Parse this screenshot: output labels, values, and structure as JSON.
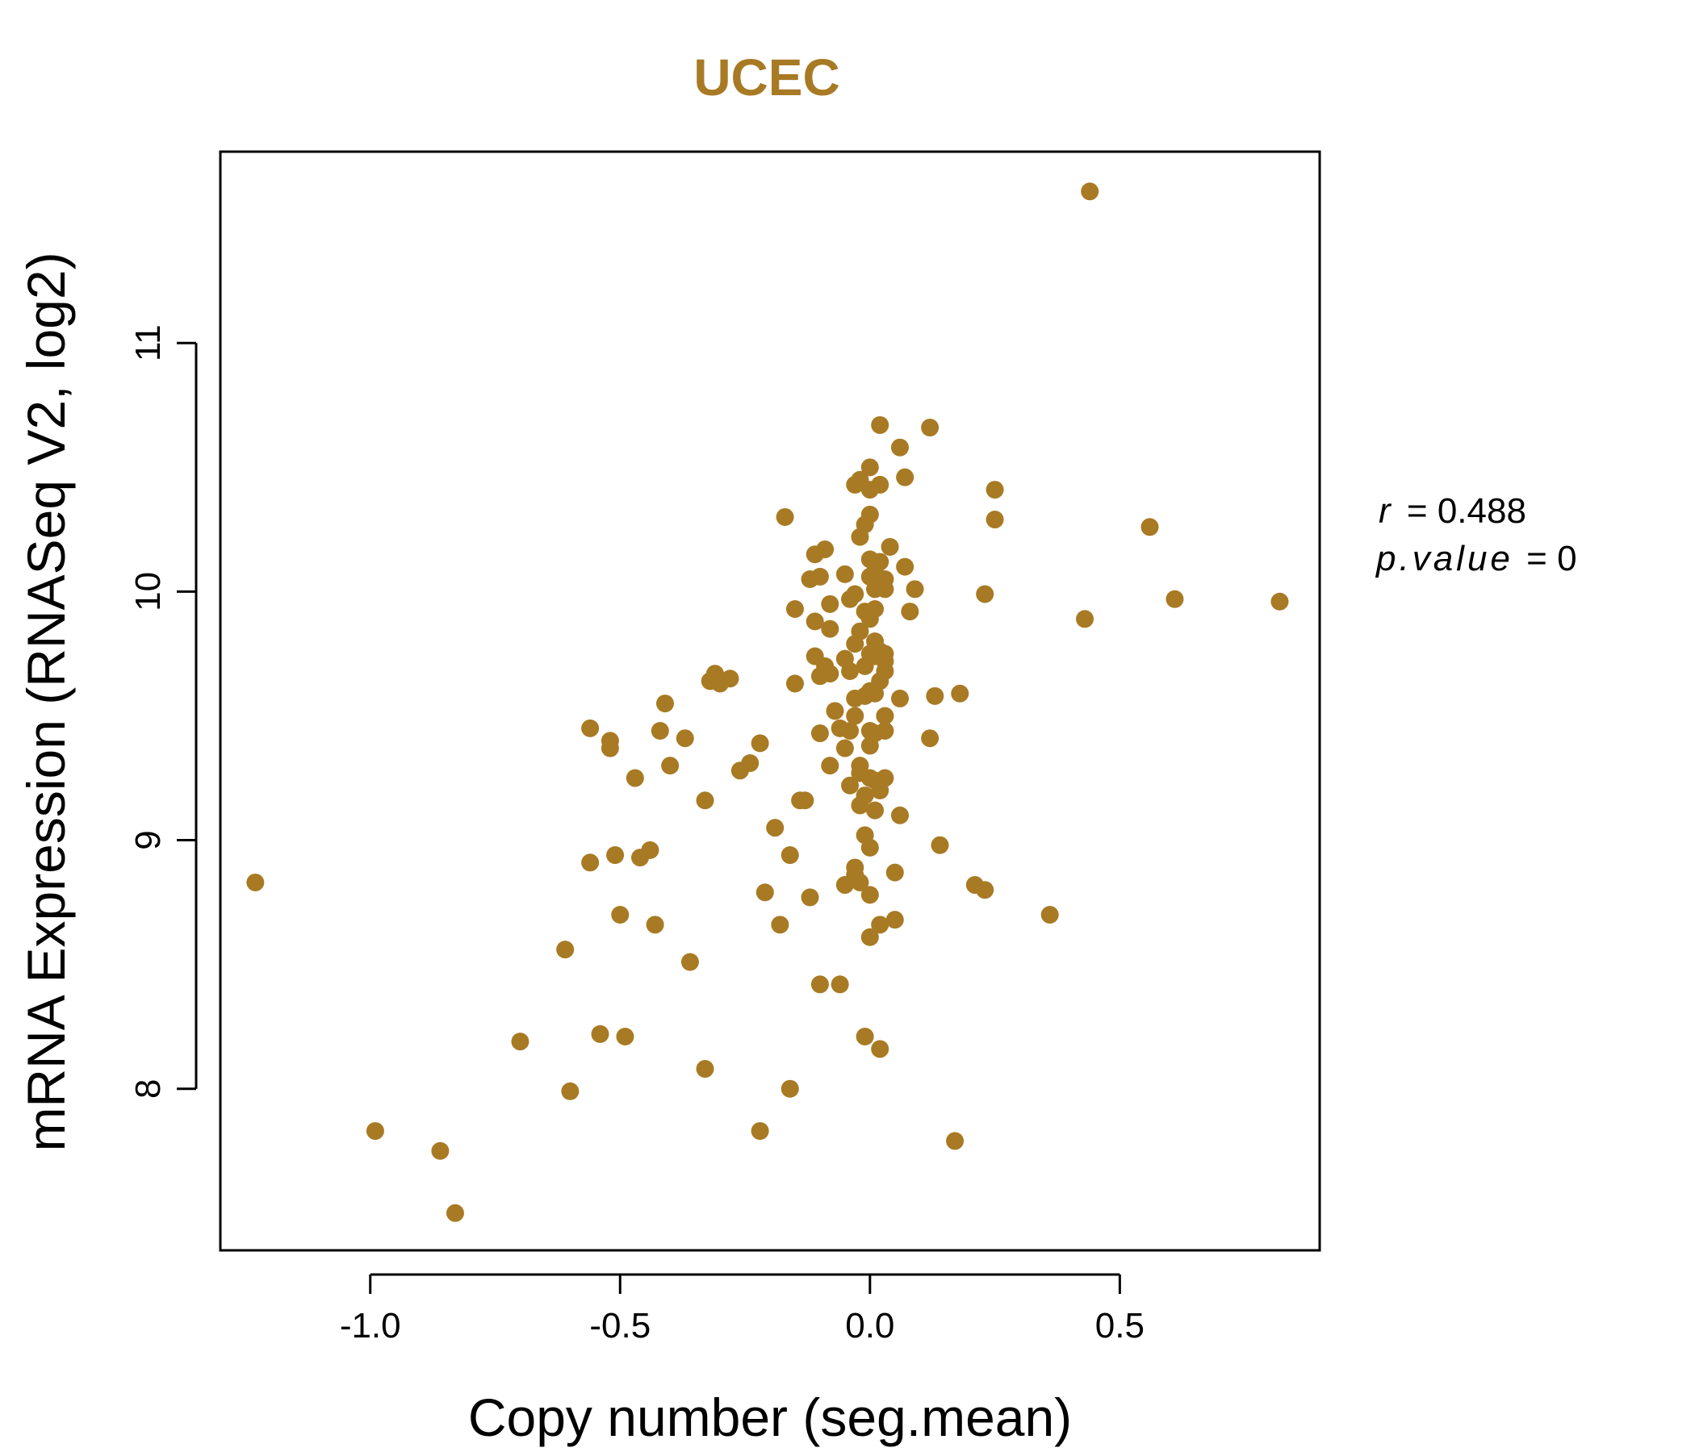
{
  "chart_data": {
    "type": "scatter",
    "title": "UCEC",
    "xlabel": "Copy number (seg.mean)",
    "ylabel": "mRNA Expression (RNASeq V2, log2)",
    "xlim": [
      -1.3,
      0.9
    ],
    "ylim": [
      7.35,
      11.77
    ],
    "xticks": [
      -1.0,
      -0.5,
      0.0,
      0.5
    ],
    "xtick_labels": [
      "-1.0",
      "-0.5",
      "0.0",
      "0.5"
    ],
    "yticks": [
      8,
      9,
      10,
      11
    ],
    "ytick_labels": [
      "8",
      "9",
      "10",
      "11"
    ],
    "grid": false,
    "color": "#A87A24",
    "annotations": {
      "r_label": "r",
      "r_value": "0.488",
      "p_label": "p.value",
      "p_value": "0"
    },
    "points": [
      [
        -1.23,
        8.83
      ],
      [
        -0.99,
        7.83
      ],
      [
        -0.86,
        7.75
      ],
      [
        -0.83,
        7.5
      ],
      [
        -0.7,
        8.19
      ],
      [
        -0.61,
        8.56
      ],
      [
        -0.6,
        7.99
      ],
      [
        -0.56,
        9.45
      ],
      [
        -0.56,
        8.91
      ],
      [
        -0.54,
        8.22
      ],
      [
        -0.52,
        9.4
      ],
      [
        -0.52,
        9.37
      ],
      [
        -0.51,
        8.94
      ],
      [
        -0.5,
        8.7
      ],
      [
        -0.49,
        8.21
      ],
      [
        -0.47,
        9.25
      ],
      [
        -0.46,
        8.93
      ],
      [
        -0.44,
        8.96
      ],
      [
        -0.43,
        8.66
      ],
      [
        -0.42,
        9.44
      ],
      [
        -0.41,
        9.55
      ],
      [
        -0.4,
        9.3
      ],
      [
        -0.37,
        9.41
      ],
      [
        -0.36,
        8.51
      ],
      [
        -0.33,
        9.16
      ],
      [
        -0.33,
        8.08
      ],
      [
        -0.32,
        9.64
      ],
      [
        -0.31,
        9.67
      ],
      [
        -0.3,
        9.63
      ],
      [
        -0.28,
        9.65
      ],
      [
        -0.26,
        9.28
      ],
      [
        -0.24,
        9.31
      ],
      [
        -0.22,
        9.39
      ],
      [
        -0.22,
        7.83
      ],
      [
        -0.21,
        8.79
      ],
      [
        -0.19,
        9.05
      ],
      [
        -0.18,
        8.66
      ],
      [
        -0.17,
        10.3
      ],
      [
        -0.16,
        8.0
      ],
      [
        -0.16,
        8.94
      ],
      [
        -0.15,
        9.93
      ],
      [
        -0.15,
        9.63
      ],
      [
        -0.14,
        9.16
      ],
      [
        -0.13,
        9.16
      ],
      [
        -0.12,
        8.77
      ],
      [
        -0.12,
        10.05
      ],
      [
        -0.11,
        10.15
      ],
      [
        -0.11,
        9.88
      ],
      [
        -0.11,
        9.74
      ],
      [
        -0.1,
        9.66
      ],
      [
        -0.1,
        9.43
      ],
      [
        -0.1,
        8.42
      ],
      [
        -0.1,
        10.06
      ],
      [
        -0.09,
        9.7
      ],
      [
        -0.09,
        10.17
      ],
      [
        -0.08,
        9.85
      ],
      [
        -0.08,
        9.67
      ],
      [
        -0.08,
        9.95
      ],
      [
        -0.08,
        9.3
      ],
      [
        -0.07,
        9.52
      ],
      [
        -0.06,
        8.42
      ],
      [
        -0.06,
        9.45
      ],
      [
        -0.05,
        9.73
      ],
      [
        -0.05,
        9.37
      ],
      [
        -0.05,
        10.07
      ],
      [
        -0.05,
        8.82
      ],
      [
        -0.04,
        9.97
      ],
      [
        -0.04,
        9.68
      ],
      [
        -0.04,
        9.22
      ],
      [
        -0.04,
        9.44
      ],
      [
        -0.03,
        9.57
      ],
      [
        -0.03,
        9.5
      ],
      [
        -0.03,
        10.43
      ],
      [
        -0.03,
        8.89
      ],
      [
        -0.03,
        8.86
      ],
      [
        -0.03,
        9.79
      ],
      [
        -0.03,
        9.99
      ],
      [
        -0.02,
        10.22
      ],
      [
        -0.02,
        10.45
      ],
      [
        -0.02,
        9.27
      ],
      [
        -0.02,
        9.3
      ],
      [
        -0.02,
        8.83
      ],
      [
        -0.02,
        9.14
      ],
      [
        -0.02,
        9.84
      ],
      [
        -0.01,
        10.27
      ],
      [
        -0.01,
        9.7
      ],
      [
        -0.01,
        9.58
      ],
      [
        -0.01,
        9.18
      ],
      [
        -0.01,
        9.02
      ],
      [
        -0.01,
        8.21
      ],
      [
        -0.01,
        9.92
      ],
      [
        0.0,
        10.06
      ],
      [
        0.0,
        9.38
      ],
      [
        0.0,
        9.44
      ],
      [
        0.0,
        8.97
      ],
      [
        0.0,
        10.31
      ],
      [
        0.0,
        10.13
      ],
      [
        0.0,
        10.41
      ],
      [
        0.0,
        9.25
      ],
      [
        0.0,
        9.6
      ],
      [
        0.0,
        9.75
      ],
      [
        0.0,
        9.89
      ],
      [
        0.0,
        8.61
      ],
      [
        0.0,
        8.78
      ],
      [
        0.0,
        10.5
      ],
      [
        0.01,
        9.8
      ],
      [
        0.01,
        9.59
      ],
      [
        0.01,
        9.12
      ],
      [
        0.01,
        9.24
      ],
      [
        0.01,
        10.01
      ],
      [
        0.01,
        9.93
      ],
      [
        0.01,
        9.43
      ],
      [
        0.01,
        10.08
      ],
      [
        0.01,
        9.74
      ],
      [
        0.02,
        10.43
      ],
      [
        0.02,
        9.2
      ],
      [
        0.02,
        9.64
      ],
      [
        0.02,
        8.16
      ],
      [
        0.02,
        10.67
      ],
      [
        0.02,
        9.76
      ],
      [
        0.02,
        8.66
      ],
      [
        0.02,
        10.12
      ],
      [
        0.03,
        9.68
      ],
      [
        0.03,
        10.05
      ],
      [
        0.03,
        9.44
      ],
      [
        0.03,
        9.5
      ],
      [
        0.03,
        9.25
      ],
      [
        0.03,
        9.72
      ],
      [
        0.03,
        10.01
      ],
      [
        0.03,
        9.75
      ],
      [
        0.04,
        10.18
      ],
      [
        0.05,
        8.87
      ],
      [
        0.05,
        8.68
      ],
      [
        0.06,
        9.1
      ],
      [
        0.06,
        9.57
      ],
      [
        0.06,
        10.58
      ],
      [
        0.07,
        10.46
      ],
      [
        0.07,
        10.1
      ],
      [
        0.08,
        9.92
      ],
      [
        0.09,
        10.01
      ],
      [
        0.12,
        10.66
      ],
      [
        0.12,
        9.41
      ],
      [
        0.13,
        9.58
      ],
      [
        0.14,
        8.98
      ],
      [
        0.17,
        7.79
      ],
      [
        0.18,
        9.59
      ],
      [
        0.21,
        8.82
      ],
      [
        0.23,
        8.8
      ],
      [
        0.23,
        9.99
      ],
      [
        0.25,
        10.41
      ],
      [
        0.25,
        10.29
      ],
      [
        0.36,
        8.7
      ],
      [
        0.43,
        9.89
      ],
      [
        0.44,
        11.61
      ],
      [
        0.56,
        10.26
      ],
      [
        0.61,
        9.97
      ],
      [
        0.82,
        9.96
      ]
    ]
  }
}
